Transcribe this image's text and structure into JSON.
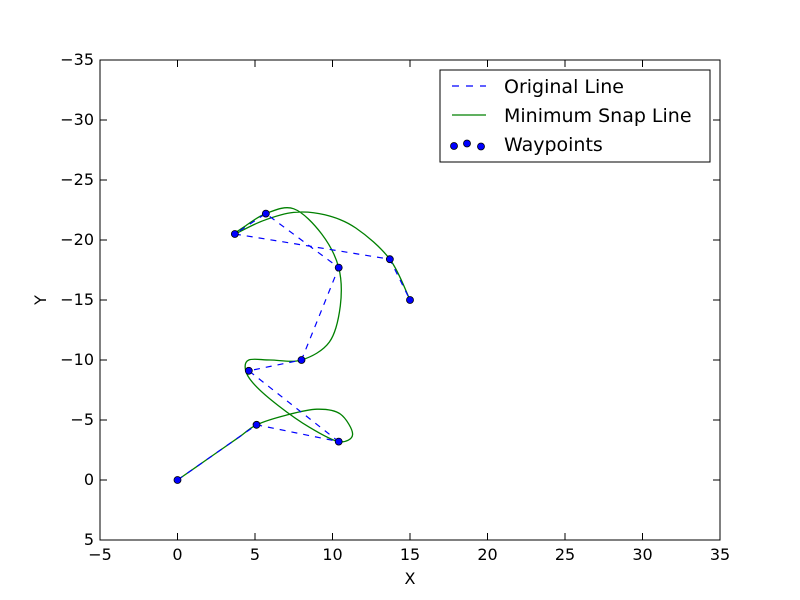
{
  "chart_data": {
    "type": "line",
    "title": "",
    "xlabel": "X",
    "ylabel": "Y",
    "xlim": [
      -5,
      35
    ],
    "ylim": [
      5,
      -35
    ],
    "y_inverted": true,
    "x_ticks": [
      -5,
      0,
      5,
      10,
      15,
      20,
      25,
      30,
      35
    ],
    "y_ticks": [
      5,
      0,
      -5,
      -10,
      -15,
      -20,
      -25,
      -30,
      -35
    ],
    "x_tick_labels": [
      "−5",
      "0",
      "5",
      "10",
      "15",
      "20",
      "25",
      "30",
      "35"
    ],
    "y_tick_labels": [
      "5",
      "0",
      "−5",
      "−10",
      "−15",
      "−20",
      "−25",
      "−30",
      "−35"
    ],
    "grid": false,
    "legend_position": "top-right",
    "series": [
      {
        "name": "Original Line",
        "style": "dashed",
        "color": "#0000ff",
        "x": [
          0,
          5.1,
          10.4,
          4.6,
          8.0,
          10.4,
          5.7,
          3.7,
          13.7,
          15.0
        ],
        "y": [
          0,
          -4.6,
          -3.2,
          -9.1,
          -10.0,
          -17.7,
          -22.2,
          -20.5,
          -18.4,
          -15.0
        ]
      },
      {
        "name": "Minimum Snap Line",
        "style": "solid",
        "color": "#008000",
        "x": [
          0,
          2.0,
          4.0,
          5.1,
          7.0,
          9.0,
          10.5,
          11.3,
          10.4,
          8.5,
          6.5,
          5.0,
          4.4,
          4.6,
          6.0,
          8.0,
          9.8,
          10.5,
          10.4,
          9.3,
          7.5,
          5.7,
          4.3,
          3.7,
          5.5,
          7.5,
          9.5,
          11.5,
          13.7,
          15.0
        ],
        "y": [
          0,
          -1.8,
          -3.6,
          -4.6,
          -5.4,
          -5.9,
          -5.5,
          -3.8,
          -3.2,
          -4.4,
          -6.2,
          -7.9,
          -9.1,
          -10.0,
          -10.0,
          -10.0,
          -11.5,
          -14.5,
          -17.7,
          -20.5,
          -22.6,
          -22.2,
          -21.1,
          -20.5,
          -21.6,
          -22.3,
          -22.1,
          -21.0,
          -18.4,
          -15.0
        ]
      },
      {
        "name": "Waypoints",
        "style": "markers",
        "color": "#0000ff",
        "x": [
          0,
          5.1,
          10.4,
          4.6,
          8.0,
          10.4,
          5.7,
          3.7,
          13.7,
          15.0
        ],
        "y": [
          0,
          -4.6,
          -3.2,
          -9.1,
          -10.0,
          -17.7,
          -22.2,
          -20.5,
          -18.4,
          -15.0
        ]
      }
    ]
  }
}
